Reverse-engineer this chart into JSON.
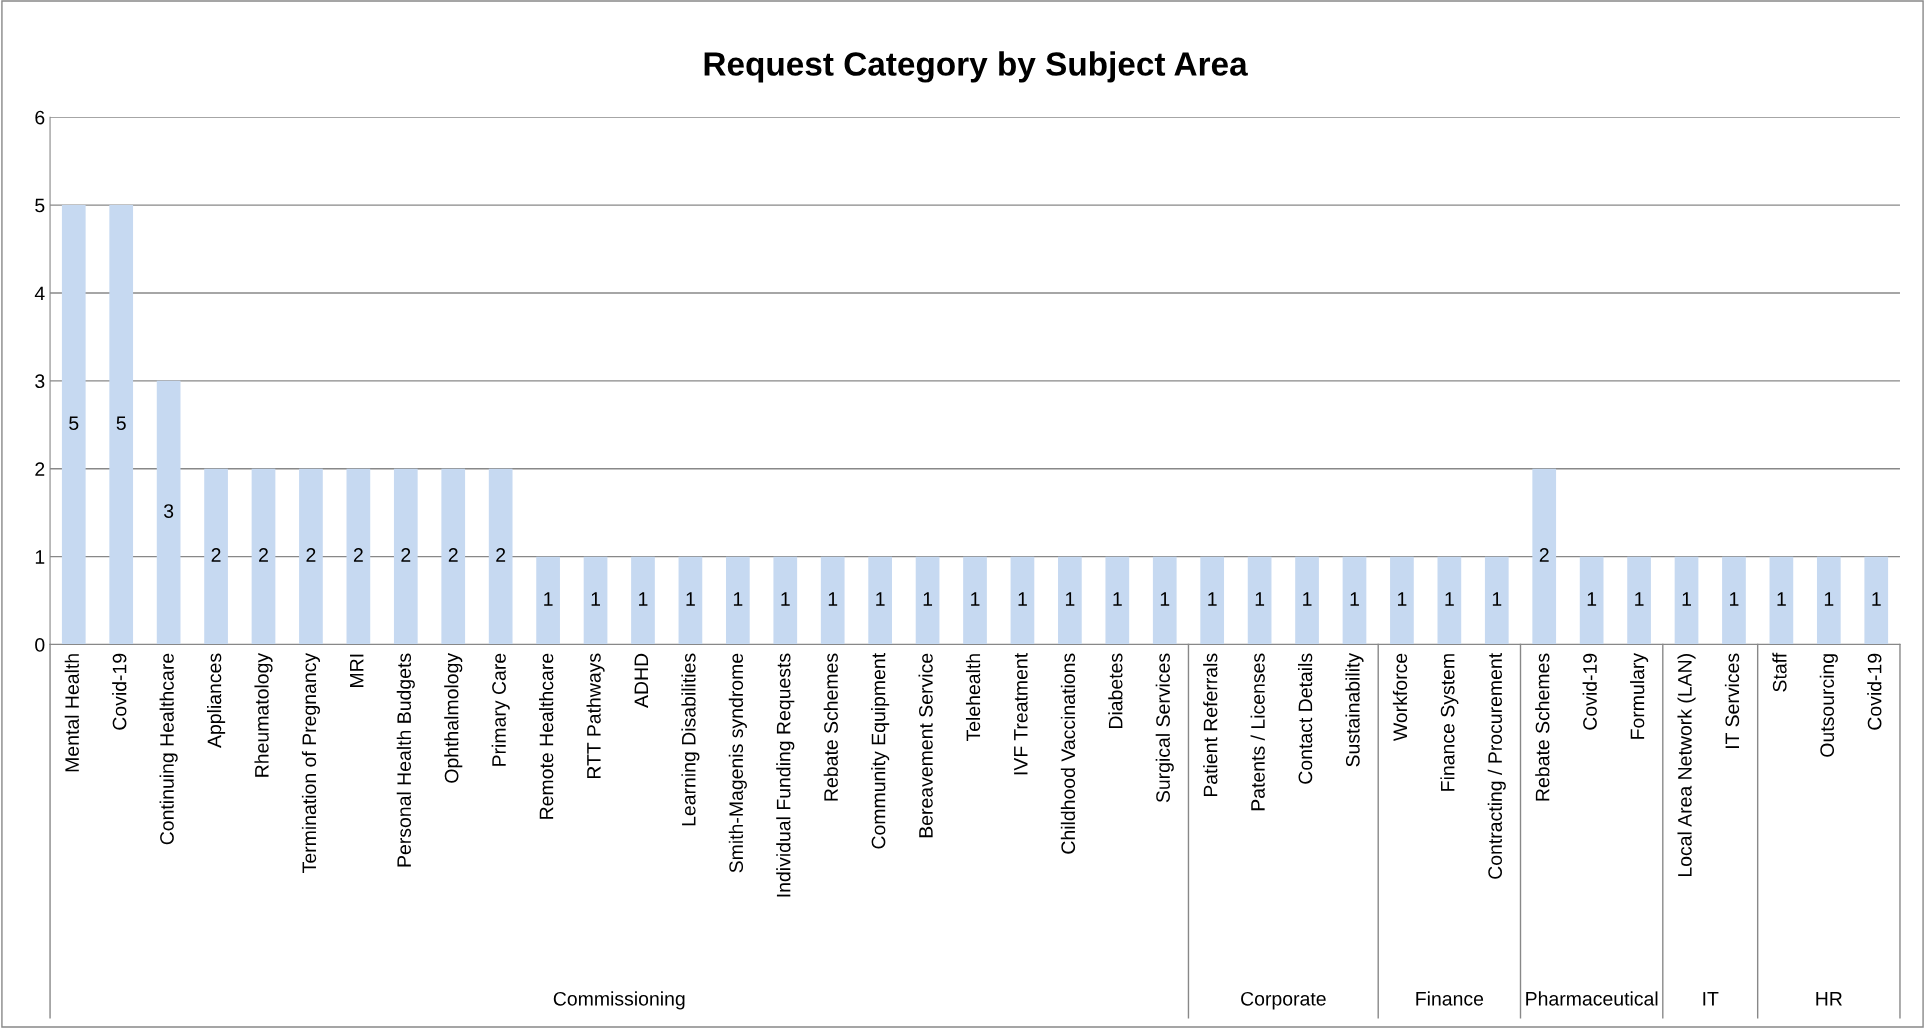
{
  "chart_data": {
    "type": "bar",
    "title": "Request Category by Subject Area",
    "categories": [
      "Mental Health",
      "Covid-19",
      "Continuing Healthcare",
      "Appliances",
      "Rheumatology",
      "Termination of Pregnancy",
      "MRI",
      "Personal Health Budgets",
      "Ophthalmology",
      "Primary Care",
      "Remote Healthcare",
      "RTT Pathways",
      "ADHD",
      "Learning Disabilities",
      "Smith-Magenis syndrome",
      "Individual Funding Requests",
      "Rebate Schemes",
      "Community Equipment",
      "Bereavement Service",
      "Telehealth",
      "IVF Treatment",
      "Childhood Vaccinations",
      "Diabetes",
      "Surgical Services",
      "Patient Referrals",
      "Patents / Licenses",
      "Contact Details",
      "Sustainability",
      "Workforce",
      "Finance System",
      "Contracting / Procurement",
      "Rebate Schemes",
      "Covid-19",
      "Formulary",
      "Local Area Network (LAN)",
      "IT Services",
      "Staff",
      "Outsourcing",
      "Covid-19"
    ],
    "series": [
      {
        "color": "#c6d9f1",
        "values": [
          5,
          5,
          3,
          2,
          2,
          2,
          2,
          2,
          2,
          2,
          1,
          1,
          1,
          1,
          1,
          1,
          1,
          1,
          1,
          1,
          1,
          1,
          1,
          1,
          null,
          null,
          null,
          null,
          null,
          null,
          null,
          null,
          null,
          null,
          null,
          null,
          null,
          null,
          null
        ]
      },
      {
        "color": "#c6d9f1",
        "values": [
          null,
          null,
          null,
          null,
          null,
          null,
          null,
          null,
          null,
          null,
          null,
          null,
          null,
          null,
          null,
          null,
          null,
          null,
          null,
          null,
          null,
          null,
          null,
          null,
          1,
          1,
          1,
          1,
          null,
          null,
          null,
          null,
          null,
          null,
          null,
          null,
          null,
          null,
          null
        ]
      },
      {
        "color": "#c6d9f1",
        "values": [
          null,
          null,
          null,
          null,
          null,
          null,
          null,
          null,
          null,
          null,
          null,
          null,
          null,
          null,
          null,
          null,
          null,
          null,
          null,
          null,
          null,
          null,
          null,
          null,
          null,
          null,
          null,
          null,
          1,
          1,
          1,
          null,
          null,
          null,
          null,
          null,
          null,
          null,
          null
        ]
      },
      {
        "color": "#c6d9f1",
        "values": [
          null,
          null,
          null,
          null,
          null,
          null,
          null,
          null,
          null,
          null,
          null,
          null,
          null,
          null,
          null,
          null,
          null,
          null,
          null,
          null,
          null,
          null,
          null,
          null,
          null,
          null,
          null,
          null,
          null,
          null,
          null,
          2,
          1,
          1,
          null,
          null,
          null,
          null,
          null
        ]
      },
      {
        "color": "#c6d9f1",
        "values": [
          null,
          null,
          null,
          null,
          null,
          null,
          null,
          null,
          null,
          null,
          null,
          null,
          null,
          null,
          null,
          null,
          null,
          null,
          null,
          null,
          null,
          null,
          null,
          null,
          null,
          null,
          null,
          null,
          null,
          null,
          null,
          null,
          null,
          null,
          1,
          1,
          null,
          null,
          null
        ]
      },
      {
        "color": "#c6d9f1",
        "values": [
          null,
          null,
          null,
          null,
          null,
          null,
          null,
          null,
          null,
          null,
          null,
          null,
          null,
          null,
          null,
          null,
          null,
          null,
          null,
          null,
          null,
          null,
          null,
          null,
          null,
          null,
          null,
          null,
          null,
          null,
          null,
          null,
          null,
          null,
          null,
          null,
          1,
          1,
          1
        ]
      }
    ],
    "annotations": [
      "Commissioning",
      "Corporate",
      "Finance",
      "Pharmaceutical",
      "IT",
      "HR"
    ],
    "ylim": [
      0,
      6
    ],
    "yticks": [
      0,
      1,
      2,
      3,
      4,
      5,
      6
    ],
    "grid": "y",
    "data_labels": true
  }
}
